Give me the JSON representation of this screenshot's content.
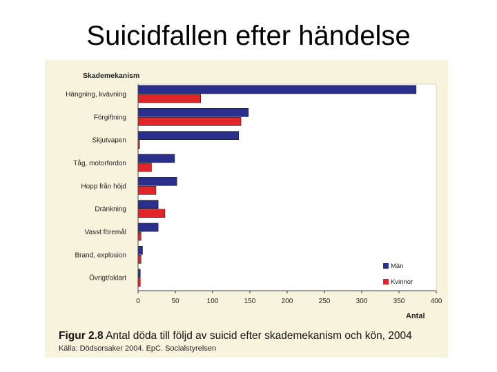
{
  "slide": {
    "title": "Suicidfallen efter händelse"
  },
  "figure": {
    "number_label": "Figur 2.8",
    "caption": "Antal döda till följd av suicid efter skademekanism och kön, 2004",
    "source": "Källa: Dödsorsaker 2004. EpC. Socialstyrelsen"
  },
  "colors": {
    "man": "#2b2f8c",
    "kvinnor": "#e0262b",
    "panel": "#f7f3dc",
    "plot_bg": "#ffffff"
  },
  "chart_data": {
    "type": "bar",
    "orientation": "horizontal",
    "title": "",
    "ylabel": "Skademekanism",
    "xlabel": "Antal",
    "xlim": [
      0,
      400
    ],
    "xticks": [
      0,
      50,
      100,
      150,
      200,
      250,
      300,
      350,
      400
    ],
    "grid": false,
    "legend_position": "bottom-right",
    "categories": [
      "Hängning, kvävning",
      "Förgiftning",
      "Skjutvapen",
      "Tåg, motorfordon",
      "Hopp från höjd",
      "Dränkning",
      "Vasst föremål",
      "Brand, explosion",
      "Övrigt/oklart"
    ],
    "series": [
      {
        "name": "Män",
        "color": "#2b2f8c",
        "values": [
          373,
          148,
          135,
          49,
          52,
          27,
          27,
          6,
          3
        ]
      },
      {
        "name": "Kvinnor",
        "color": "#e0262b",
        "values": [
          84,
          138,
          2,
          18,
          24,
          36,
          4,
          4,
          3
        ]
      }
    ]
  }
}
